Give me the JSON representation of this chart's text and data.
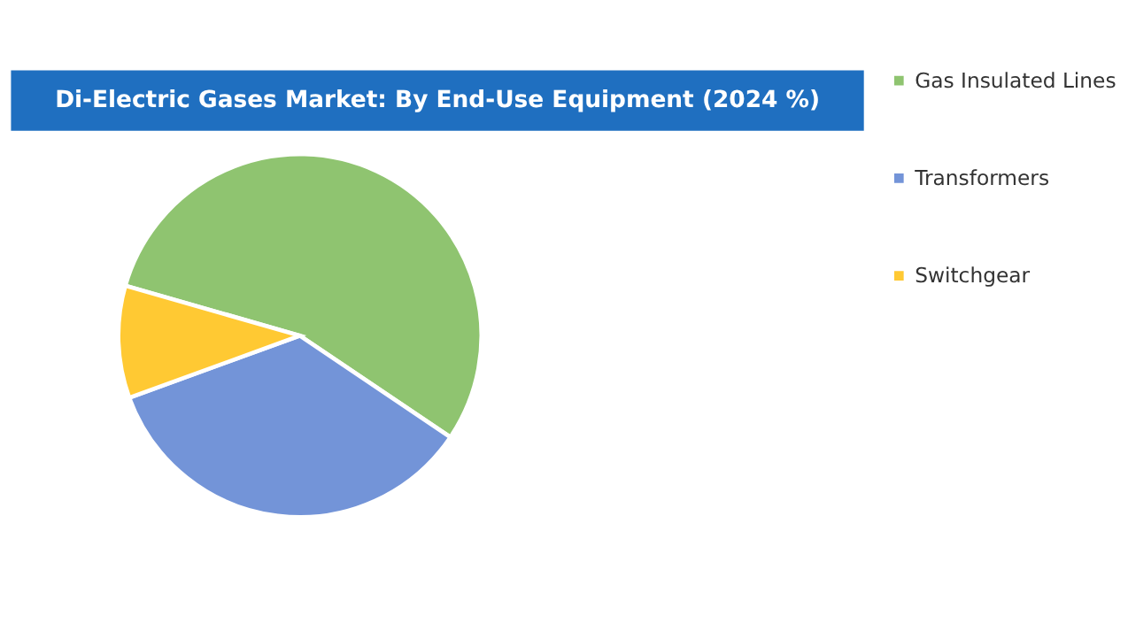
{
  "chart_data": {
    "type": "pie",
    "title": "Di-Electric Gases Market: By End-Use Equipment  (2024 %)",
    "categories": [
      "Gas Insulated Lines",
      "Transformers",
      "Switchgear"
    ],
    "values": [
      55,
      35,
      10
    ],
    "colors": [
      "#8fc470",
      "#7394d8",
      "#ffc933"
    ],
    "legend": "right"
  }
}
